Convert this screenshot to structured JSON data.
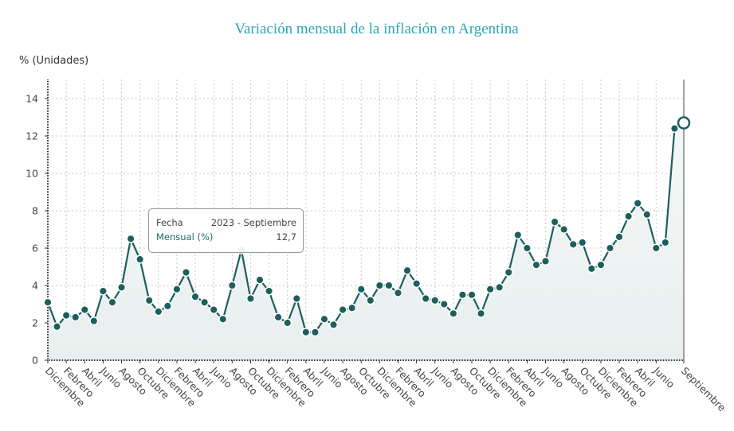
{
  "chart_data": {
    "type": "area",
    "title": "Variación mensual de la inflación en Argentina",
    "ylabel": "% (Unidades)",
    "xlabel": "",
    "ylim": [
      0,
      15
    ],
    "yticks": [
      0,
      2,
      4,
      6,
      8,
      10,
      12,
      14
    ],
    "grid": true,
    "series": [
      {
        "name": "Mensual (%)",
        "color": "#1c5f5c",
        "values": [
          3.1,
          1.8,
          2.4,
          2.3,
          2.7,
          2.1,
          3.7,
          3.1,
          3.9,
          6.5,
          5.4,
          3.2,
          2.6,
          2.9,
          3.8,
          4.7,
          3.4,
          3.1,
          2.7,
          2.2,
          4.0,
          5.9,
          3.3,
          4.3,
          3.7,
          2.3,
          2.0,
          3.3,
          1.5,
          1.5,
          2.2,
          1.9,
          2.7,
          2.8,
          3.8,
          3.2,
          4.0,
          4.0,
          3.6,
          4.8,
          4.1,
          3.3,
          3.2,
          3.0,
          2.5,
          3.5,
          3.5,
          2.5,
          3.8,
          3.9,
          4.7,
          6.7,
          6.0,
          5.1,
          5.3,
          7.4,
          7.0,
          6.2,
          6.3,
          4.9,
          5.1,
          6.0,
          6.6,
          7.7,
          8.4,
          7.8,
          6.0,
          6.3,
          12.4,
          12.7
        ]
      }
    ],
    "x_tick_labels": [
      "Diciembre",
      "Febrero",
      "Abril",
      "Junio",
      "Agosto",
      "Octubre",
      "Diciembre",
      "Febrero",
      "Abril",
      "Junio",
      "Agosto",
      "Octubre",
      "Diciembre",
      "Febrero",
      "Abril",
      "Junio",
      "Agosto",
      "Octubre",
      "Diciembre",
      "Febrero",
      "Abril",
      "Junio",
      "Agosto",
      "Octubre",
      "Diciembre",
      "Febrero",
      "Abril",
      "Junio",
      "Agosto",
      "Octubre",
      "Diciembre",
      "Febrero",
      "Abril",
      "Junio",
      "Septiembre"
    ],
    "highlighted_point": {
      "index": 69,
      "label": "2023 - Septiembre",
      "value": 12.7
    }
  },
  "tooltip": {
    "row1_label": "Fecha",
    "row1_value": "2023 - Septiembre",
    "row2_label": "Mensual (%)",
    "row2_value": "12,7"
  }
}
